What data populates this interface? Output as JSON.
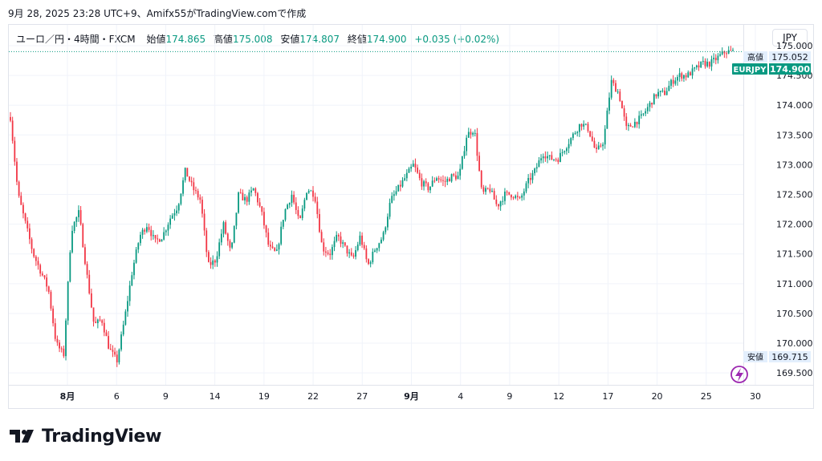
{
  "caption": "9月 28, 2025 23:28 UTC+9、Amifx55がTradingView.comで作成",
  "legend": {
    "symbol": "ユーロ／円・4時間・FXCM",
    "open_label": "始値",
    "open_value": "174.865",
    "high_label": "高値",
    "high_value": "175.008",
    "low_label": "安値",
    "low_value": "174.807",
    "close_label": "終値",
    "close_value": "174.900",
    "change": "+0.035 (+0.02%)"
  },
  "currency_button": "JPY",
  "brand": "TradingView",
  "colors": {
    "up": "#089981",
    "down": "#f23645",
    "grid": "#f0f3fa",
    "axis": "#e0e3eb",
    "text": "#131722"
  },
  "chart_data": {
    "type": "candlestick",
    "symbol": "EURJPY",
    "ylim": [
      169.3,
      175.35
    ],
    "y_ticks": [
      "175.000",
      "174.500",
      "174.000",
      "173.500",
      "173.000",
      "172.500",
      "172.000",
      "171.500",
      "171.000",
      "170.500",
      "170.000",
      "169.500"
    ],
    "x_ticks": [
      "8月",
      "6",
      "9",
      "14",
      "19",
      "22",
      "27",
      "9月",
      "4",
      "9",
      "12",
      "17",
      "20",
      "25",
      "30"
    ],
    "x_ticks_bold": [
      "8月",
      "9月"
    ],
    "markers": [
      {
        "label": "高値",
        "value": "175.052",
        "type": "high"
      },
      {
        "label": "EURJPY",
        "value": "174.900",
        "type": "last"
      },
      {
        "label": "安値",
        "value": "169.715",
        "type": "low"
      }
    ],
    "last_price": 174.9,
    "path": [
      [
        0,
        173.8
      ],
      [
        1,
        172.5
      ],
      [
        3,
        171.5
      ],
      [
        5,
        170.9
      ],
      [
        6,
        170.0
      ],
      [
        7,
        169.8
      ],
      [
        8,
        171.9
      ],
      [
        9,
        172.2
      ],
      [
        10,
        171.2
      ],
      [
        11,
        170.3
      ],
      [
        12,
        170.4
      ],
      [
        13,
        169.9
      ],
      [
        14,
        169.7
      ],
      [
        15,
        170.4
      ],
      [
        16,
        171.2
      ],
      [
        17,
        171.8
      ],
      [
        18,
        172.0
      ],
      [
        19,
        171.7
      ],
      [
        20,
        171.8
      ],
      [
        21,
        172.1
      ],
      [
        22,
        172.3
      ],
      [
        23,
        172.9
      ],
      [
        24,
        172.6
      ],
      [
        25,
        172.4
      ],
      [
        26,
        171.3
      ],
      [
        27,
        171.4
      ],
      [
        28,
        172.0
      ],
      [
        29,
        171.5
      ],
      [
        30,
        172.5
      ],
      [
        31,
        172.4
      ],
      [
        32,
        172.6
      ],
      [
        33,
        172.2
      ],
      [
        34,
        171.6
      ],
      [
        35,
        171.5
      ],
      [
        36,
        172.2
      ],
      [
        37,
        172.5
      ],
      [
        38,
        172.0
      ],
      [
        39,
        172.6
      ],
      [
        40,
        172.5
      ],
      [
        41,
        171.6
      ],
      [
        42,
        171.5
      ],
      [
        43,
        171.8
      ],
      [
        44,
        171.6
      ],
      [
        45,
        171.4
      ],
      [
        46,
        171.8
      ],
      [
        47,
        171.3
      ],
      [
        48,
        171.6
      ],
      [
        49,
        171.8
      ],
      [
        50,
        172.4
      ],
      [
        51,
        172.6
      ],
      [
        52,
        172.8
      ],
      [
        53,
        173.0
      ],
      [
        54,
        172.7
      ],
      [
        55,
        172.6
      ],
      [
        56,
        172.8
      ],
      [
        57,
        172.7
      ],
      [
        58,
        172.8
      ],
      [
        59,
        172.8
      ],
      [
        60,
        173.5
      ],
      [
        61,
        173.6
      ],
      [
        62,
        172.5
      ],
      [
        63,
        172.6
      ],
      [
        64,
        172.3
      ],
      [
        65,
        172.5
      ],
      [
        66,
        172.5
      ],
      [
        67,
        172.4
      ],
      [
        68,
        172.7
      ],
      [
        69,
        172.9
      ],
      [
        70,
        173.2
      ],
      [
        71,
        173.1
      ],
      [
        72,
        173.1
      ],
      [
        73,
        173.3
      ],
      [
        74,
        173.5
      ],
      [
        75,
        173.7
      ],
      [
        76,
        173.6
      ],
      [
        77,
        173.2
      ],
      [
        78,
        173.4
      ],
      [
        79,
        174.4
      ],
      [
        80,
        174.2
      ],
      [
        81,
        173.6
      ],
      [
        82,
        173.7
      ],
      [
        83,
        173.8
      ],
      [
        84,
        174.0
      ],
      [
        85,
        174.2
      ],
      [
        86,
        174.2
      ],
      [
        87,
        174.4
      ],
      [
        88,
        174.5
      ],
      [
        89,
        174.5
      ],
      [
        90,
        174.6
      ],
      [
        91,
        174.7
      ],
      [
        92,
        174.7
      ],
      [
        93,
        174.8
      ],
      [
        94,
        174.9
      ],
      [
        95,
        174.9
      ]
    ],
    "n_candles": 340
  }
}
